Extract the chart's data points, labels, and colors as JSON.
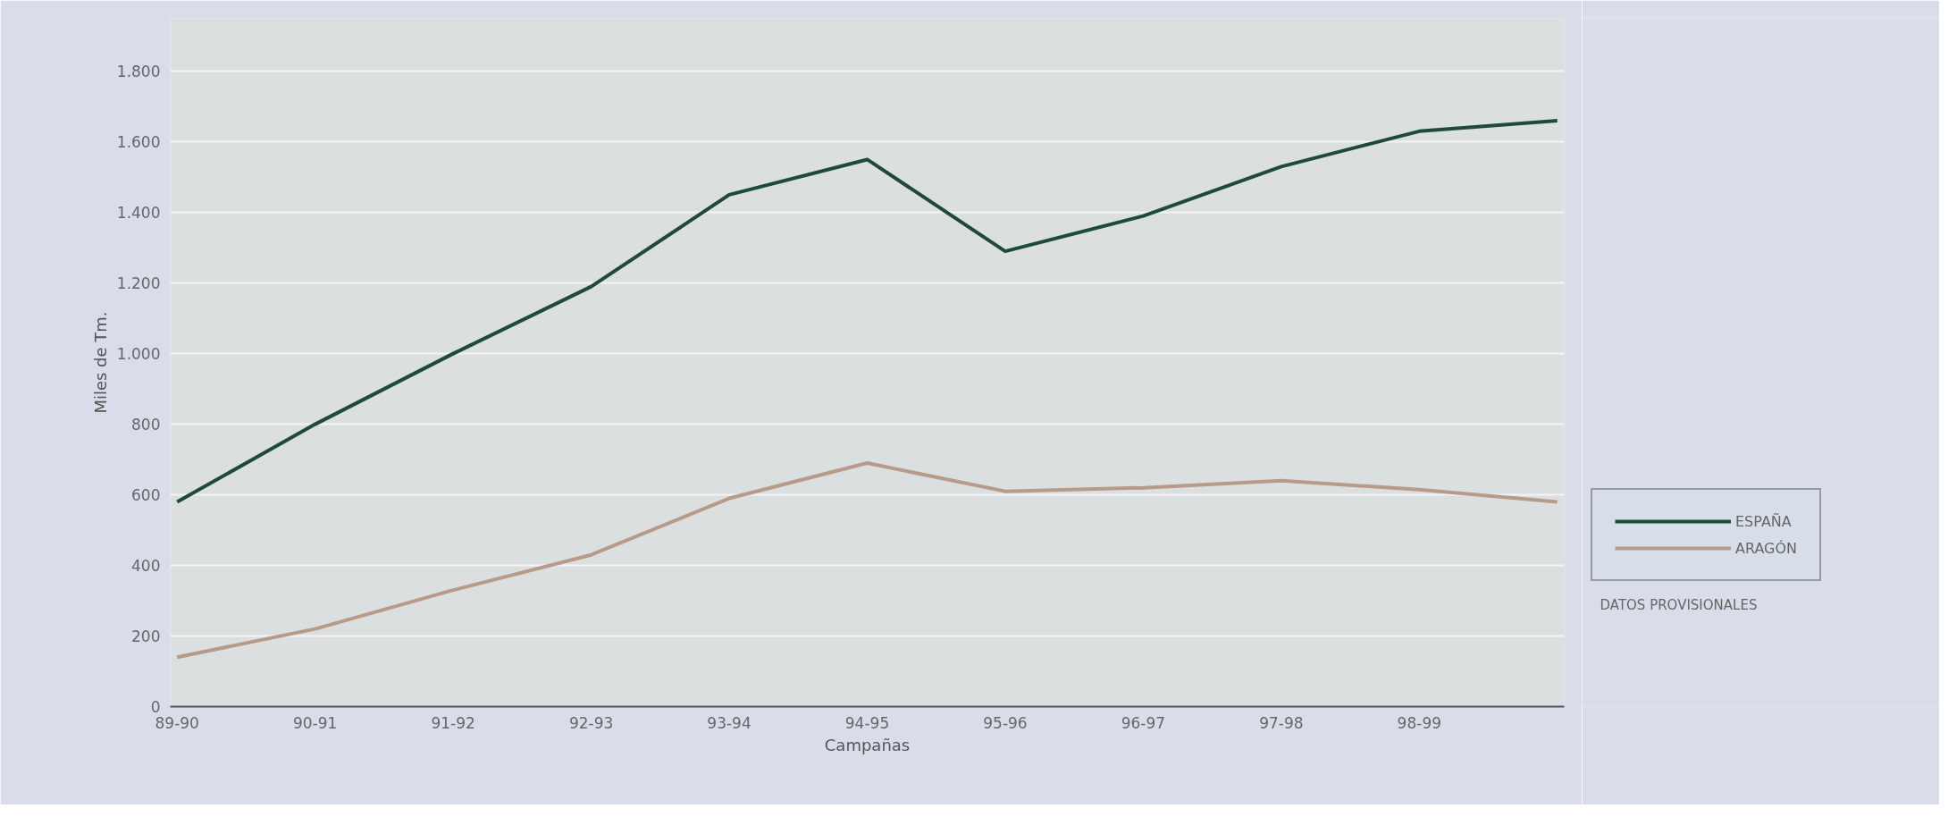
{
  "chart_data": {
    "type": "line",
    "xlabel": "Campañas",
    "ylabel": "Miles de Tm.",
    "categories": [
      "89-90",
      "90-91",
      "91-92",
      "92-93",
      "93-94",
      "94-95",
      "95-96",
      "96-97",
      "97-98",
      "98-99",
      null
    ],
    "series": [
      {
        "name": "ESPAÑA",
        "color": "#1f4a3a",
        "values": [
          580,
          800,
          1000,
          1190,
          1450,
          1550,
          1290,
          1390,
          1530,
          1630,
          1660
        ]
      },
      {
        "name": "ARAGÓN",
        "color": "#b89a88",
        "values": [
          140,
          220,
          330,
          430,
          590,
          690,
          610,
          620,
          640,
          615,
          580
        ]
      }
    ],
    "ylim": [
      0,
      1950
    ],
    "yticks": [
      0,
      200,
      400,
      600,
      800,
      {
        "value": 1000,
        "label": "1.000"
      },
      {
        "value": 1200,
        "label": "1.200"
      },
      {
        "value": 1400,
        "label": "1.400"
      },
      {
        "value": 1600,
        "label": "1.600"
      },
      {
        "value": 1800,
        "label": "1.800"
      }
    ],
    "grid": "y",
    "legend": "bottom right",
    "marker": "none",
    "line_style": "solid",
    "annotations": [
      "DATOS PROVISIONALES"
    ]
  }
}
